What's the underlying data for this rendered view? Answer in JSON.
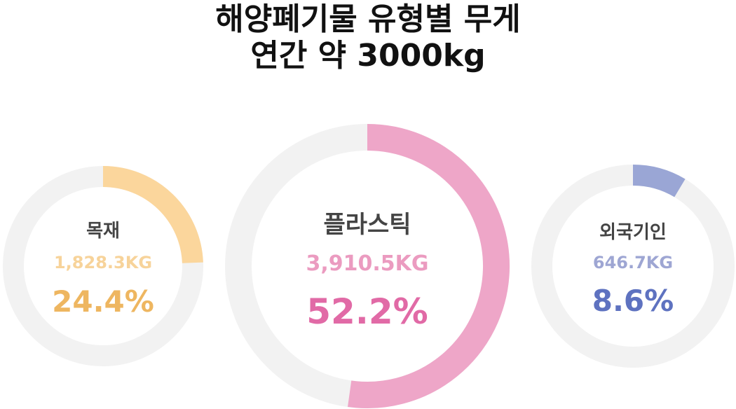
{
  "title": {
    "line1": "해양폐기물 유형별 무게",
    "line2": "연간 약 3000kg"
  },
  "chart_data": {
    "type": "pie",
    "style": "donut",
    "track_color": "#f2f2f2",
    "items": [
      {
        "key": "wood",
        "category": "목재",
        "weight_label": "1,828.3KG",
        "weight_kg": 1828.3,
        "percent_label": "24.4%",
        "percent": 24.4,
        "arc_color": "#fbd69c",
        "weight_color": "#f7d39a",
        "percent_color": "#eeb660"
      },
      {
        "key": "plastic",
        "category": "플라스틱",
        "weight_label": "3,910.5KG",
        "weight_kg": 3910.5,
        "percent_label": "52.2%",
        "percent": 52.2,
        "arc_color": "#eea6c8",
        "weight_color": "#eb9bc0",
        "percent_color": "#e16aa6"
      },
      {
        "key": "foreign",
        "category": "외국기인",
        "weight_label": "646.7KG",
        "weight_kg": 646.7,
        "percent_label": "8.6%",
        "percent": 8.6,
        "arc_color": "#9aa6d5",
        "weight_color": "#9ea6d3",
        "percent_color": "#5e72c0"
      }
    ]
  }
}
